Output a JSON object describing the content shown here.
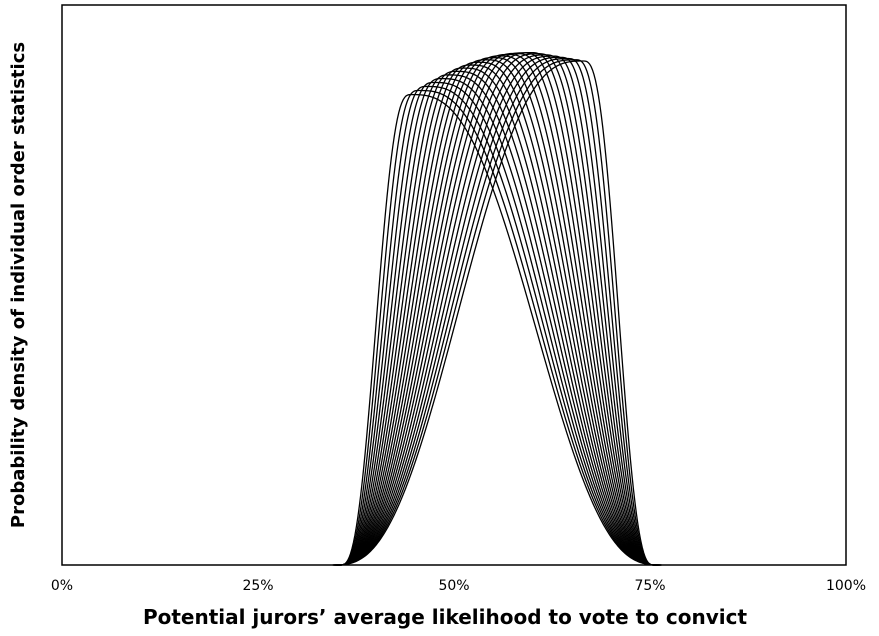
{
  "chart_data": {
    "type": "line",
    "title": "",
    "xlabel": "Potential jurors’ average likelihood to vote to convict",
    "ylabel": "Probability density of individual order statistics",
    "x_ticks": [
      "0%",
      "25%",
      "50%",
      "75%",
      "100%"
    ],
    "xlim": [
      0,
      1
    ],
    "ylim": [
      0,
      1
    ],
    "y_ticks_shown": false,
    "grid": false,
    "legend": "none",
    "line_color": "#000000",
    "curve_family": {
      "count": 24,
      "peak_x_first": 0.445,
      "peak_x_last": 0.665,
      "peak_density_first": 0.84,
      "peak_density_max": 0.915,
      "peak_density_last": 0.9,
      "left_width_first": 0.045,
      "left_width_last": 0.16,
      "right_width_first": 0.16,
      "right_width_last": 0.045
    }
  }
}
